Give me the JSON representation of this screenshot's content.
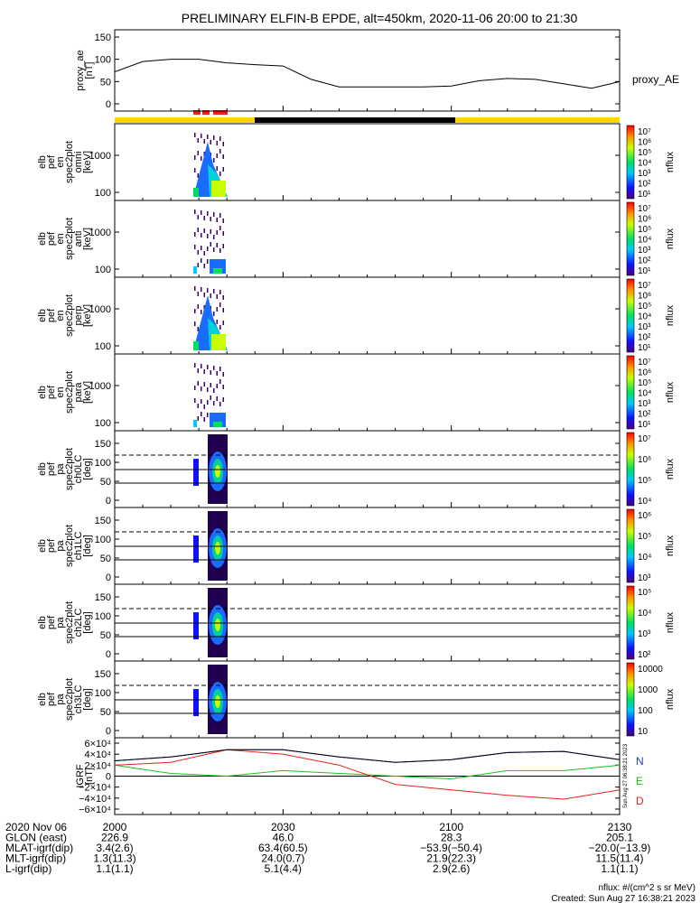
{
  "title": "PRELIMINARY ELFIN-B EPDE, alt=450km, 2020-11-06 20:00 to 21:30",
  "colors": {
    "yellow": "#ffd400",
    "black": "#000000",
    "red": "#e8231a",
    "blue": "#1a3cd8",
    "green": "#19c41a"
  },
  "panels": [
    {
      "id": "proxy-ae",
      "ylabel": [
        "proxy_ae",
        "[nT]"
      ],
      "yticks": [
        "150",
        "100",
        "50",
        "0"
      ],
      "right_label": "proxy_AE"
    },
    {
      "id": "omni",
      "ylabel": [
        "elb",
        "pef",
        "en",
        "spec2plot",
        "omni",
        "[keV]"
      ],
      "yticks": [
        "1000",
        "100"
      ],
      "cbar_ticks": [
        "10⁷",
        "10⁶",
        "10⁵",
        "10⁴",
        "10³",
        "10²",
        "10¹"
      ],
      "cbar_label": "nflux"
    },
    {
      "id": "anti",
      "ylabel": [
        "elb",
        "pef",
        "en",
        "spec2plot",
        "anti",
        "[keV]"
      ],
      "yticks": [
        "1000",
        "100"
      ],
      "cbar_ticks": [
        "10⁷",
        "10⁶",
        "10⁵",
        "10⁴",
        "10³",
        "10²",
        "10¹"
      ],
      "cbar_label": "nflux"
    },
    {
      "id": "perp",
      "ylabel": [
        "elb",
        "pef",
        "en",
        "spec2plot",
        "perp",
        "[keV]"
      ],
      "yticks": [
        "1000",
        "100"
      ],
      "cbar_ticks": [
        "10⁷",
        "10⁶",
        "10⁵",
        "10⁴",
        "10³",
        "10²",
        "10¹"
      ],
      "cbar_label": "nflux"
    },
    {
      "id": "para",
      "ylabel": [
        "elb",
        "pef",
        "en",
        "spec2plot",
        "para",
        "[keV]"
      ],
      "yticks": [
        "1000",
        "100"
      ],
      "cbar_ticks": [
        "10⁷",
        "10⁶",
        "10⁵",
        "10⁴",
        "10³",
        "10²",
        "10¹"
      ],
      "cbar_label": "nflux"
    },
    {
      "id": "ch0lc",
      "ylabel": [
        "elb",
        "pef",
        "pa",
        "spec2plot",
        "ch0LC",
        "[deg]"
      ],
      "yticks": [
        "150",
        "100",
        "50",
        "0"
      ],
      "cbar_ticks": [
        "10⁷",
        "10⁶",
        "10⁵",
        "10⁴"
      ],
      "cbar_label": "nflux"
    },
    {
      "id": "ch1lc",
      "ylabel": [
        "elb",
        "pef",
        "pa",
        "spec2plot",
        "ch1LC",
        "[deg]"
      ],
      "yticks": [
        "150",
        "100",
        "50",
        "0"
      ],
      "cbar_ticks": [
        "10⁶",
        "10⁵",
        "10⁴",
        "10³"
      ],
      "cbar_label": "nflux"
    },
    {
      "id": "ch2lc",
      "ylabel": [
        "elb",
        "pef",
        "pa",
        "spec2plot",
        "ch2LC",
        "[deg]"
      ],
      "yticks": [
        "150",
        "100",
        "50",
        "0"
      ],
      "cbar_ticks": [
        "10⁵",
        "10⁴",
        "10³",
        "10²"
      ],
      "cbar_label": "nflux"
    },
    {
      "id": "ch3lc",
      "ylabel": [
        "elb",
        "pef",
        "pa",
        "spec2plot",
        "ch3LC",
        "[deg]"
      ],
      "yticks": [
        "150",
        "100",
        "50",
        "0"
      ],
      "cbar_ticks": [
        "10000",
        "1000",
        "100",
        "10"
      ],
      "cbar_label": "nflux"
    },
    {
      "id": "igrf",
      "ylabel": [
        "IGRF",
        "[nT]"
      ],
      "yticks": [
        "6×10⁴",
        "4×10⁴",
        "2×10⁴",
        "0",
        "−2×10⁴",
        "−4×10⁴",
        "−6×10⁴"
      ],
      "legend": [
        "N",
        "E",
        "D"
      ]
    }
  ],
  "side_stamp": "Sun Aug 27 06:38:21 2023",
  "time_axis": {
    "rows": [
      {
        "label": "2020 Nov 06",
        "values": [
          "2000",
          "2030",
          "2100",
          "2130"
        ]
      },
      {
        "label": "GLON (east)",
        "values": [
          "226.9",
          "46.0",
          "28.3",
          "205.1"
        ]
      },
      {
        "label": "MLAT-igrf(dip)",
        "values": [
          "3.4(2.6)",
          "63.4(60.5)",
          "−53.9(−50.4)",
          "−20.0(−13.9)"
        ]
      },
      {
        "label": "MLT-igrf(dip)",
        "values": [
          "1.3(11.3)",
          "24.0(0.7)",
          "21.9(22.3)",
          "11.5(11.4)"
        ]
      },
      {
        "label": "L-igrf(dip)",
        "values": [
          "1.1(1.1)",
          "5.1(4.4)",
          "2.9(2.6)",
          "1.1(1.1)"
        ]
      }
    ]
  },
  "footer": {
    "units": "nflux: #/(cm^2 s sr MeV)",
    "created": "Created: Sun Aug 27 16:38:21 2023"
  },
  "chart_data": {
    "type": "line",
    "x_range_minutes": [
      0,
      90
    ],
    "proxy_ae": {
      "x": [
        0,
        5,
        10,
        15,
        20,
        25,
        30,
        35,
        40,
        45,
        50,
        55,
        60,
        65,
        70,
        75,
        80,
        85,
        90
      ],
      "y": [
        72,
        95,
        100,
        100,
        92,
        88,
        85,
        55,
        38,
        38,
        38,
        38,
        40,
        52,
        57,
        55,
        45,
        35,
        50
      ],
      "ylim": [
        0,
        150
      ]
    },
    "igrf": {
      "x": [
        0,
        10,
        20,
        30,
        40,
        50,
        60,
        70,
        80,
        90
      ],
      "N": [
        28000,
        35000,
        48000,
        48000,
        35000,
        25000,
        30000,
        43000,
        45000,
        30000
      ],
      "E": [
        20000,
        5000,
        0,
        10000,
        5000,
        0,
        -5000,
        10000,
        10000,
        20000
      ],
      "D": [
        20000,
        25000,
        48000,
        40000,
        20000,
        -15000,
        -25000,
        -35000,
        -42000,
        -25000
      ],
      "ylim": [
        -60000,
        60000
      ]
    }
  }
}
